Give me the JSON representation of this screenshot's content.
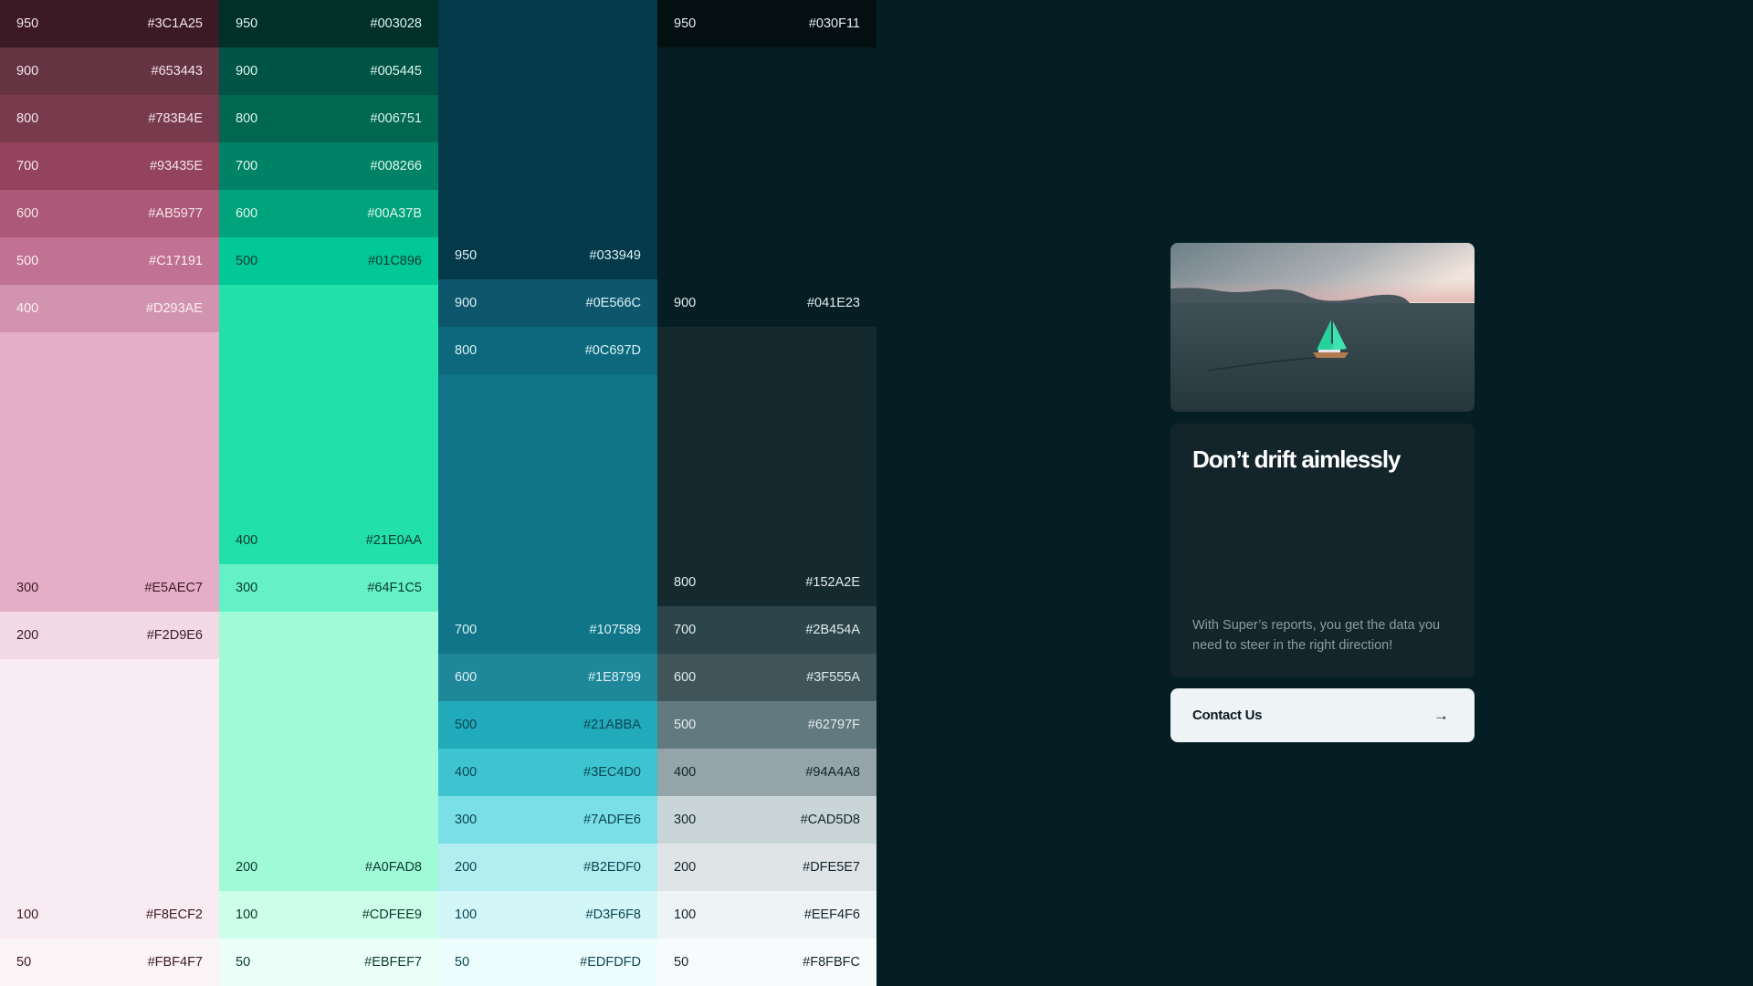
{
  "palettes": [
    {
      "swatches": [
        {
          "shade": "950",
          "hex": "#3C1A25",
          "text": "#F4E4EA"
        },
        {
          "shade": "900",
          "hex": "#653443",
          "text": "#F4E4EA"
        },
        {
          "shade": "800",
          "hex": "#783B4E",
          "text": "#F4E4EA"
        },
        {
          "shade": "700",
          "hex": "#93435E",
          "text": "#F4E4EA"
        },
        {
          "shade": "600",
          "hex": "#AB5977",
          "text": "#F4E4EA"
        },
        {
          "shade": "500",
          "hex": "#C17191",
          "text": "#FBEFF4"
        },
        {
          "shade": "400",
          "hex": "#D293AE",
          "text": "#FBEFF4"
        },
        {
          "shade": "300",
          "hex": "#E5AEC7",
          "text": "#3C1A25"
        },
        {
          "shade": "200",
          "hex": "#F2D9E6",
          "text": "#3C1A25"
        },
        {
          "shade": "100",
          "hex": "#F8ECF2",
          "text": "#3C1A25"
        },
        {
          "shade": "50",
          "hex": "#FBF4F7",
          "text": "#3C1A25"
        }
      ]
    },
    {
      "swatches": [
        {
          "shade": "950",
          "hex": "#003028",
          "text": "#DDF5EC"
        },
        {
          "shade": "900",
          "hex": "#005445",
          "text": "#DDF5EC"
        },
        {
          "shade": "800",
          "hex": "#006751",
          "text": "#DDF5EC"
        },
        {
          "shade": "700",
          "hex": "#008266",
          "text": "#DDF5EC"
        },
        {
          "shade": "600",
          "hex": "#00A37B",
          "text": "#DDF5EC"
        },
        {
          "shade": "500",
          "hex": "#01C896",
          "text": "#0B3B30"
        },
        {
          "shade": "400",
          "hex": "#21E0AA",
          "text": "#0B3B30"
        },
        {
          "shade": "300",
          "hex": "#64F1C5",
          "text": "#0B3B30"
        },
        {
          "shade": "200",
          "hex": "#A0FAD8",
          "text": "#0B3B30"
        },
        {
          "shade": "100",
          "hex": "#CDFEE9",
          "text": "#0B3B30"
        },
        {
          "shade": "50",
          "hex": "#EBFEF7",
          "text": "#0B3B30"
        }
      ]
    },
    {
      "swatches": [
        {
          "shade": "950",
          "hex": "#033949",
          "text": "#DDF1F6"
        },
        {
          "shade": "900",
          "hex": "#0E566C",
          "text": "#DDF1F6"
        },
        {
          "shade": "800",
          "hex": "#0C697D",
          "text": "#DDF1F6"
        },
        {
          "shade": "700",
          "hex": "#107589",
          "text": "#DDF1F6"
        },
        {
          "shade": "600",
          "hex": "#1E8799",
          "text": "#DDF1F6"
        },
        {
          "shade": "500",
          "hex": "#21ABBA",
          "text": "#0B4552"
        },
        {
          "shade": "400",
          "hex": "#3EC4D0",
          "text": "#0B4552"
        },
        {
          "shade": "300",
          "hex": "#7ADFE6",
          "text": "#0B4552"
        },
        {
          "shade": "200",
          "hex": "#B2EDF0",
          "text": "#0B4552"
        },
        {
          "shade": "100",
          "hex": "#D3F6F8",
          "text": "#0B4552"
        },
        {
          "shade": "50",
          "hex": "#EDFDFD",
          "text": "#0B4552"
        }
      ]
    },
    {
      "swatches": [
        {
          "shade": "950",
          "hex": "#030F11",
          "text": "#E3ECEE"
        },
        {
          "shade": "900",
          "hex": "#041E23",
          "text": "#E3ECEE"
        },
        {
          "shade": "800",
          "hex": "#152A2E",
          "text": "#E3ECEE"
        },
        {
          "shade": "700",
          "hex": "#2B454A",
          "text": "#E3ECEE"
        },
        {
          "shade": "600",
          "hex": "#3F555A",
          "text": "#E3ECEE"
        },
        {
          "shade": "500",
          "hex": "#62797F",
          "text": "#E3ECEE"
        },
        {
          "shade": "400",
          "hex": "#94A4A8",
          "text": "#13252A"
        },
        {
          "shade": "300",
          "hex": "#CAD5D8",
          "text": "#13252A"
        },
        {
          "shade": "200",
          "hex": "#DFE5E7",
          "text": "#13252A"
        },
        {
          "shade": "100",
          "hex": "#EEF4F6",
          "text": "#13252A"
        },
        {
          "shade": "50",
          "hex": "#F8FBFC",
          "text": "#13252A"
        }
      ]
    }
  ],
  "card": {
    "image_alt": "sailboat-photo",
    "title": "Don’t drift aimlessly",
    "description": "With Super’s reports, you get the data you need to steer in the right direction!",
    "button_label": "Contact Us",
    "button_icon": "arrow-right-icon"
  }
}
